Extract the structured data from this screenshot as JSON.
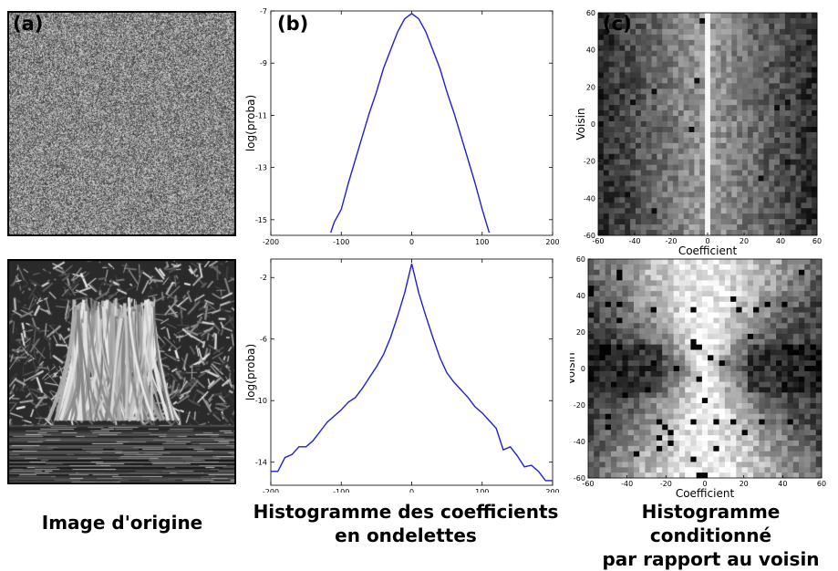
{
  "panel_letters": {
    "a": "(a)",
    "b": "(b)",
    "c": "(c)"
  },
  "captions": {
    "col1": "Image d'origine",
    "col2_line1": "Histogramme des coefficients",
    "col2_line2": "en ondelettes",
    "col3_line1": "Histogramme conditionné",
    "col3_line2": "par rapport au voisin"
  },
  "images": {
    "noise": "noise-image",
    "tree": "tree-image"
  },
  "chart_data": [
    {
      "type": "line",
      "panel": "top-histogram",
      "ylabel": "log(proba)",
      "xlabel": "",
      "xlim": [
        -200,
        200
      ],
      "ylim": [
        -15.6,
        -7
      ],
      "xticks": [
        "-200",
        "-100",
        "0",
        "100",
        "200"
      ],
      "yticks": [
        "-7",
        "-9",
        "-11",
        "-13",
        "-15"
      ],
      "x": [
        -115,
        -110,
        -100,
        -90,
        -80,
        -70,
        -60,
        -50,
        -40,
        -30,
        -20,
        -10,
        0,
        10,
        20,
        30,
        40,
        50,
        60,
        70,
        80,
        90,
        100,
        110
      ],
      "y": [
        -15.5,
        -15.1,
        -14.6,
        -13.6,
        -12.7,
        -11.8,
        -10.9,
        -10.1,
        -9.2,
        -8.5,
        -7.8,
        -7.3,
        -7.1,
        -7.3,
        -7.8,
        -8.5,
        -9.2,
        -10.1,
        -10.9,
        -11.8,
        -12.7,
        -13.6,
        -14.6,
        -15.5
      ],
      "color": "#1f1fd6"
    },
    {
      "type": "line",
      "panel": "bottom-histogram",
      "ylabel": "log(proba)",
      "xlabel": "",
      "xlim": [
        -200,
        200
      ],
      "ylim": [
        -15.5,
        -0.8
      ],
      "xticks": [
        "-200",
        "-100",
        "0",
        "100",
        "200"
      ],
      "yticks": [
        "-2",
        "-6",
        "-10",
        "-14"
      ],
      "x": [
        -200,
        -190,
        -180,
        -170,
        -160,
        -150,
        -140,
        -130,
        -120,
        -110,
        -100,
        -90,
        -80,
        -70,
        -60,
        -50,
        -40,
        -30,
        -20,
        -10,
        0,
        10,
        20,
        30,
        40,
        50,
        60,
        70,
        80,
        90,
        100,
        110,
        120,
        130,
        140,
        150,
        160,
        170,
        180,
        190,
        200
      ],
      "y": [
        -14.6,
        -14.6,
        -13.7,
        -13.5,
        -13.0,
        -13.0,
        -12.6,
        -12.0,
        -11.4,
        -11.0,
        -10.6,
        -10.1,
        -9.8,
        -9.2,
        -8.5,
        -7.8,
        -7.0,
        -5.9,
        -4.5,
        -3.0,
        -1.1,
        -3.0,
        -4.5,
        -5.9,
        -7.2,
        -8.2,
        -8.8,
        -9.3,
        -9.8,
        -10.4,
        -10.8,
        -11.3,
        -11.8,
        -13.2,
        -13.0,
        -13.6,
        -14.3,
        -14.2,
        -14.6,
        -15.2,
        -15.2
      ],
      "color": "#1f1fd6"
    },
    {
      "type": "heatmap",
      "panel": "top-conditional",
      "xlabel": "Coefficient",
      "ylabel": "Voisin",
      "xlim": [
        -60,
        60
      ],
      "ylim": [
        -60,
        60
      ],
      "xticks": [
        "-60",
        "-40",
        "-20",
        "0",
        "20",
        "40",
        "60"
      ],
      "yticks": [
        "60",
        "40",
        "20",
        "0",
        "-20",
        "-40",
        "-60"
      ],
      "colormap": "gray",
      "description": "vertical band brighter near coefficient 0, darker edges; no neighbour dependence"
    },
    {
      "type": "heatmap",
      "panel": "bottom-conditional",
      "xlabel": "Coefficient",
      "ylabel": "Voisin",
      "xlim": [
        -60,
        60
      ],
      "ylim": [
        -60,
        60
      ],
      "xticks": [
        "-60",
        "-40",
        "-20",
        "0",
        "20",
        "40",
        "60"
      ],
      "yticks": [
        "60",
        "40",
        "20",
        "0",
        "-20",
        "-40",
        "-60"
      ],
      "colormap": "gray",
      "description": "bow-tie shape: bright near coefficient 0, spreading with neighbour magnitude"
    }
  ]
}
